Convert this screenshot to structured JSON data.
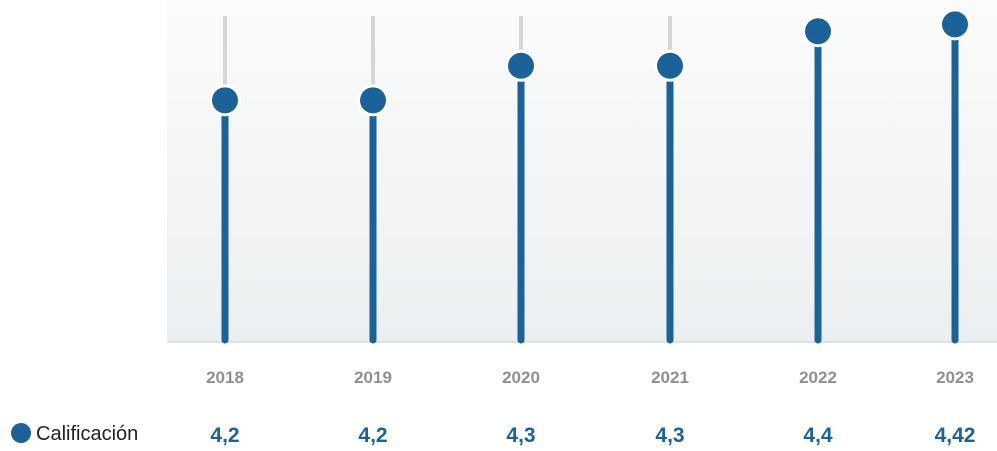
{
  "chart_data": {
    "type": "lollipop",
    "categories": [
      "2018",
      "2019",
      "2020",
      "2021",
      "2022",
      "2023"
    ],
    "series": [
      {
        "name": "Calificación",
        "values": [
          4.2,
          4.2,
          4.3,
          4.3,
          4.4,
          4.42
        ],
        "labels": [
          "4,2",
          "4,2",
          "4,3",
          "4,3",
          "4,4",
          "4,42"
        ]
      }
    ],
    "xlabel": "",
    "ylabel": "",
    "ylim": [
      3.5,
      4.45
    ],
    "grid": false,
    "legend_position": "bottom-left",
    "colors": {
      "series": "#1b6299",
      "track": "#d6d6d6",
      "plot_bg_top": "#fbfbfb",
      "plot_bg_bottom": "#eceff1",
      "axis": "#c9c9c9",
      "tick_text": "#8f8f8f",
      "legend_text": "#222222"
    }
  }
}
